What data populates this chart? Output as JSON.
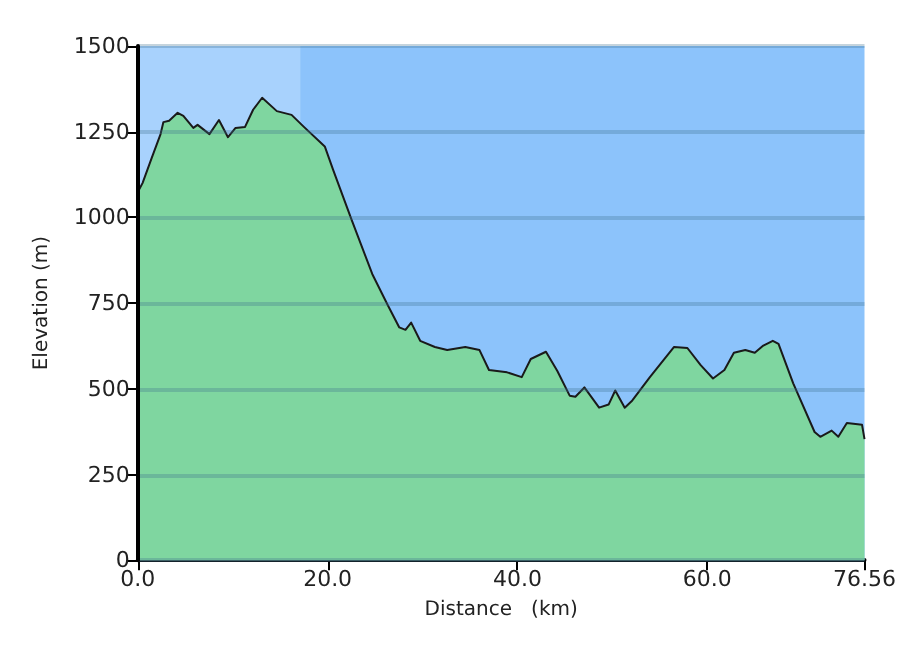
{
  "chart_data": {
    "type": "area",
    "xlabel": "Distance   (km)",
    "ylabel": "Elevation (m)",
    "x": [
      0,
      0.5,
      1.45,
      2.4,
      2.7,
      3.3,
      4.2,
      4.8,
      5.85,
      6.3,
      7.55,
      8.55,
      9.5,
      10.3,
      11.3,
      12.15,
      13.1,
      14.65,
      16.2,
      17.5,
      19.7,
      20.6,
      22.5,
      24.7,
      26.3,
      27.55,
      28.2,
      28.8,
      29.75,
      31.3,
      32.6,
      34.5,
      36.0,
      37.0,
      38.9,
      40.45,
      41.4,
      43.0,
      44.2,
      45.5,
      46.1,
      47.05,
      48.6,
      49.6,
      50.3,
      51.3,
      52.1,
      53.95,
      56.5,
      57.9,
      59.3,
      60.6,
      61.8,
      62.8,
      64.0,
      65.0,
      65.9,
      66.9,
      67.5,
      69.05,
      71.3,
      71.9,
      73.1,
      73.8,
      74.7,
      76.3,
      76.56
    ],
    "series": [
      {
        "color": "#7fd6a0",
        "values": [
          1074,
          1100,
          1172,
          1243,
          1278,
          1282,
          1305,
          1296,
          1261,
          1270,
          1243,
          1284,
          1234,
          1261,
          1264,
          1314,
          1349,
          1310,
          1299,
          1264,
          1207,
          1137,
          995,
          835,
          746,
          679,
          672,
          693,
          640,
          622,
          613,
          622,
          613,
          555,
          548,
          534,
          587,
          608,
          552,
          480,
          477,
          504,
          445,
          454,
          495,
          445,
          466,
          534,
          622,
          619,
          569,
          530,
          555,
          605,
          613,
          605,
          626,
          640,
          631,
          516,
          374,
          360,
          378,
          360,
          400,
          395,
          353
        ]
      }
    ],
    "xlim": [
      0,
      76.56
    ],
    "xticks": [
      {
        "value": 0,
        "label": "0.0"
      },
      {
        "value": 20,
        "label": "20.0"
      },
      {
        "value": 40,
        "label": "40.0"
      },
      {
        "value": 60,
        "label": "60.0"
      },
      76.56
    ],
    "ylim": [
      0,
      1500
    ],
    "yticks": [
      0,
      250,
      500,
      750,
      1000,
      1250,
      1500
    ],
    "bands": [
      {
        "axis": "x",
        "from": 0,
        "to": 17.1,
        "color": "#a8d2fd"
      },
      {
        "axis": "x",
        "from": 17.1,
        "to": 76.56,
        "color": "#8cc3fb"
      }
    ],
    "grid": "y",
    "marker": "none",
    "line_style": "solid"
  }
}
